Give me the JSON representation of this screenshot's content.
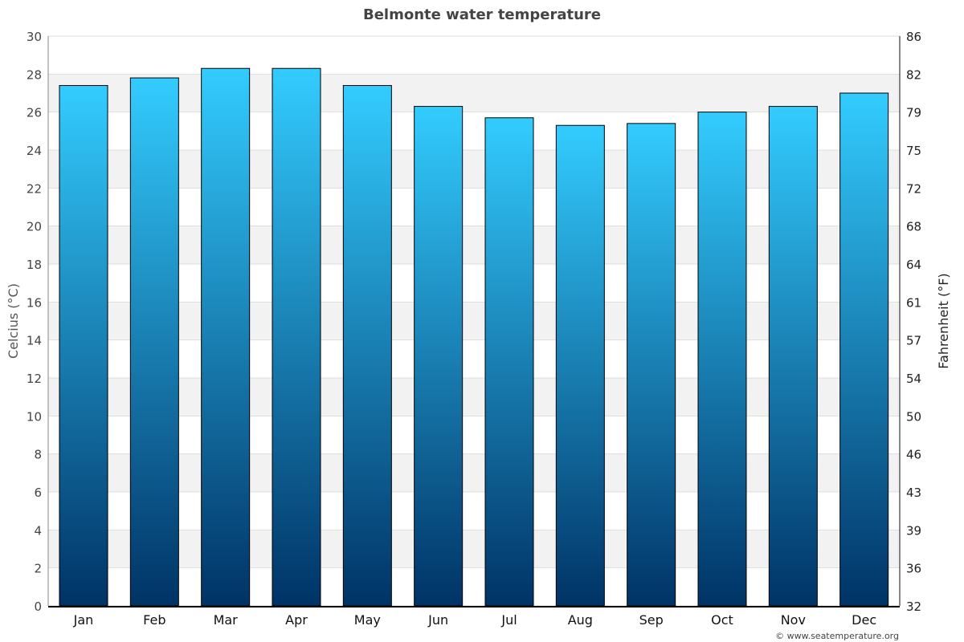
{
  "chart_data": {
    "type": "bar",
    "title": "Belmonte water temperature",
    "ylabel": "Celcius (°C)",
    "y2label": "Fahrenheit (°F)",
    "categories": [
      "Jan",
      "Feb",
      "Mar",
      "Apr",
      "May",
      "Jun",
      "Jul",
      "Aug",
      "Sep",
      "Oct",
      "Nov",
      "Dec"
    ],
    "values": [
      27.4,
      27.8,
      28.3,
      28.3,
      27.4,
      26.3,
      25.7,
      25.3,
      25.4,
      26.0,
      26.3,
      27.0
    ],
    "ylim": [
      0,
      30
    ],
    "yticks": [
      "0",
      "2",
      "4",
      "6",
      "8",
      "10",
      "12",
      "14",
      "16",
      "18",
      "20",
      "22",
      "24",
      "26",
      "28",
      "30"
    ],
    "y2ticks": [
      "32",
      "36",
      "39",
      "43",
      "46",
      "50",
      "54",
      "57",
      "61",
      "64",
      "68",
      "72",
      "75",
      "79",
      "82",
      "86"
    ],
    "grid": true,
    "bar_color_top": "#33ccff",
    "bar_color_bottom": "#003366"
  },
  "credit": "© www.seatemperature.org"
}
